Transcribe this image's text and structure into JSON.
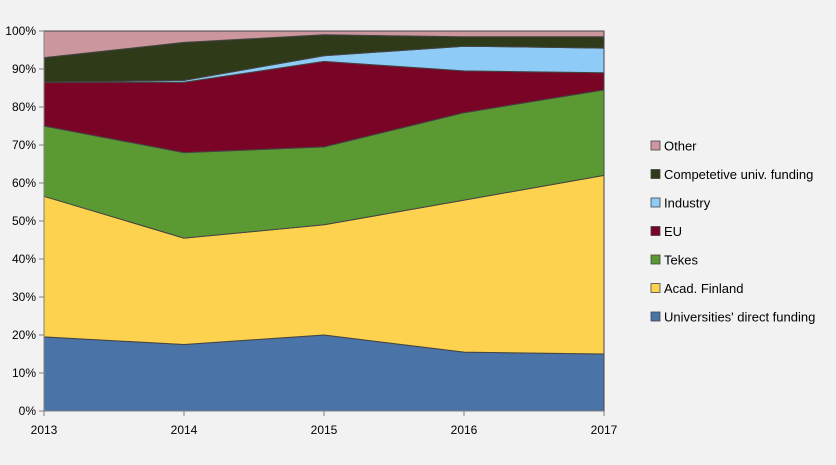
{
  "chart_data": {
    "type": "area",
    "stacked": true,
    "x": [
      "2013",
      "2014",
      "2015",
      "2016",
      "2017"
    ],
    "ylim": [
      0,
      100
    ],
    "y_ticks": [
      "0%",
      "10%",
      "20%",
      "30%",
      "40%",
      "50%",
      "60%",
      "70%",
      "80%",
      "90%",
      "100%"
    ],
    "grid": false,
    "legend_position": "right",
    "series": [
      {
        "name": "Universities' direct  funding",
        "color": "#4a74a8",
        "values": [
          19.5,
          17.5,
          20,
          15.5,
          15
        ]
      },
      {
        "name": "Acad. Finland",
        "color": "#fdd24f",
        "values": [
          37,
          28,
          29,
          40,
          47
        ]
      },
      {
        "name": "Tekes",
        "color": "#5b9a32",
        "values": [
          18.5,
          22.5,
          20.5,
          23,
          22.5
        ]
      },
      {
        "name": "EU",
        "color": "#7a0426",
        "values": [
          11.5,
          18.5,
          22.5,
          11,
          4.5
        ]
      },
      {
        "name": "Industry",
        "color": "#8ecbf7",
        "values": [
          0,
          0.5,
          1.5,
          6.5,
          6.5
        ]
      },
      {
        "name": "Competetive univ. funding",
        "color": "#2f3a19",
        "values": [
          6.5,
          10,
          5.5,
          2.5,
          3
        ]
      },
      {
        "name": "Other",
        "color": "#cc979c",
        "values": [
          7,
          3,
          1,
          1.5,
          1.5
        ]
      }
    ]
  }
}
